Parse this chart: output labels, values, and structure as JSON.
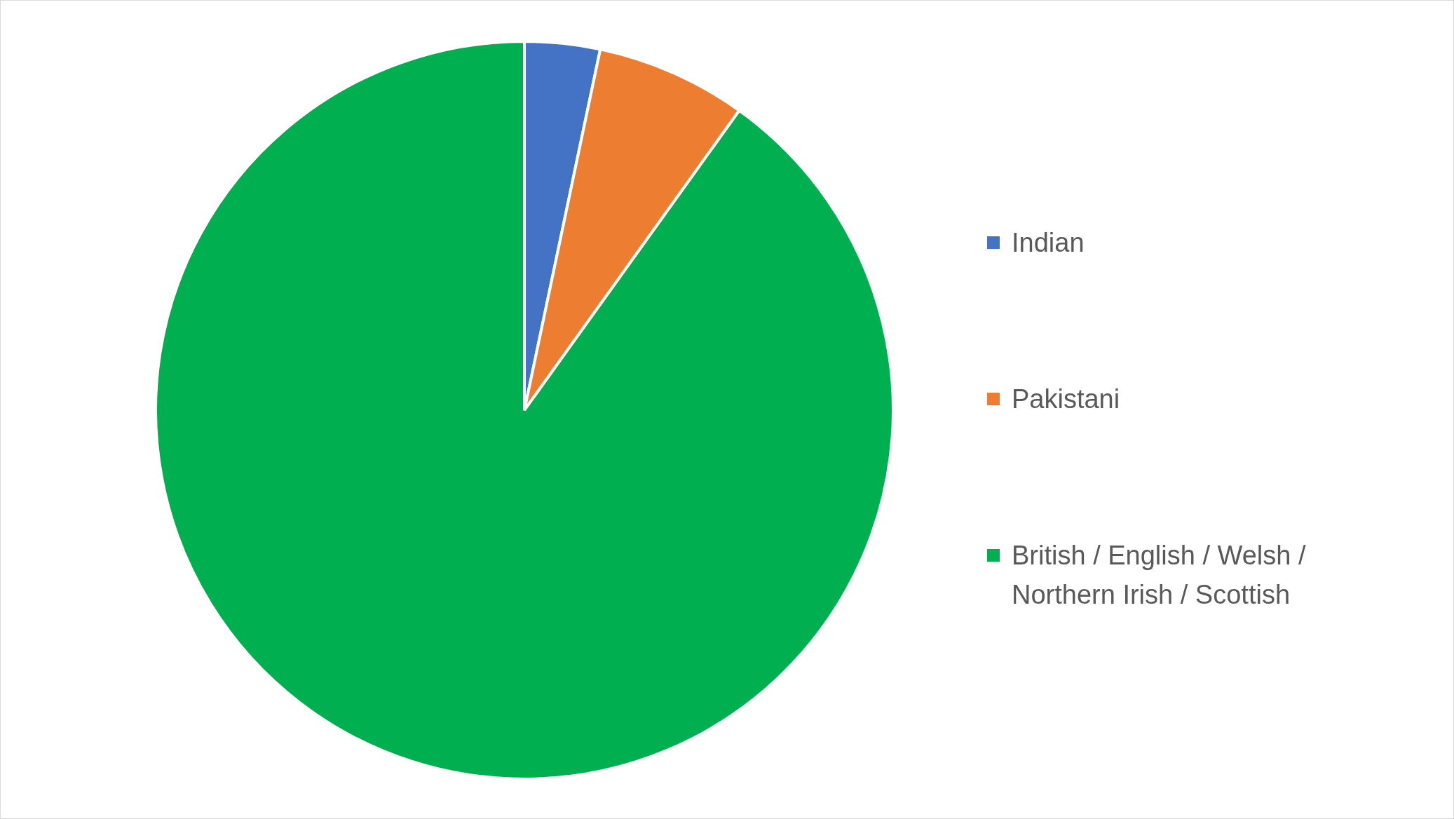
{
  "chart_data": {
    "type": "pie",
    "categories": [
      "Indian",
      "Pakistani",
      "British / English / Welsh / Northern Irish / Scottish"
    ],
    "values": [
      3.3,
      6.6,
      90.1
    ],
    "colors": [
      "#4472c4",
      "#ed7d31",
      "#00b050"
    ],
    "legend": "right"
  }
}
